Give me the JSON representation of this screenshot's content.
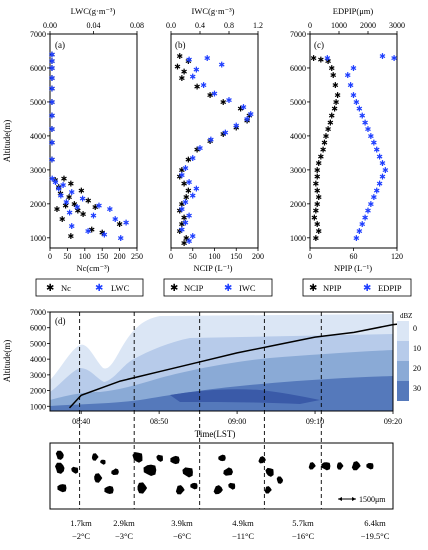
{
  "panels": {
    "a": {
      "tag": "(a)",
      "top_axis_label": "LWC(g·m⁻³)",
      "top_ticks": [
        "0.00",
        "0.04",
        "0.08"
      ],
      "bottom_axis_label": "Nc(cm⁻³)",
      "bottom_ticks": [
        "0",
        "50",
        "100",
        "150",
        "200",
        "250"
      ],
      "y_axis_label": "Altitude(m)",
      "y_ticks": [
        "1000",
        "2000",
        "3000",
        "4000",
        "5000",
        "6000",
        "7000"
      ],
      "legend": [
        "Nc",
        "LWC"
      ]
    },
    "b": {
      "tag": "(b)",
      "top_axis_label": "IWC(g·m⁻³)",
      "top_ticks": [
        "0.0",
        "0.4",
        "0.8",
        "1.2"
      ],
      "bottom_axis_label": "NCIP (L⁻¹)",
      "bottom_ticks": [
        "0",
        "50",
        "100",
        "150",
        "200"
      ],
      "legend": [
        "NCIP",
        "IWC"
      ]
    },
    "c": {
      "tag": "(c)",
      "top_axis_label": "EDPIP(μm)",
      "top_ticks": [
        "0",
        "1000",
        "2000",
        "3000"
      ],
      "bottom_axis_label": "NPIP (L⁻¹)",
      "bottom_ticks": [
        "0",
        "60",
        "120"
      ],
      "y_ticks": [
        "1000",
        "2000",
        "3000",
        "4000",
        "5000",
        "6000",
        "7000"
      ],
      "legend": [
        "NPIP",
        "EDPIP"
      ]
    },
    "d": {
      "tag": "(d)",
      "y_axis_label": "Altitude(m)",
      "y_ticks": [
        "1000",
        "2000",
        "3000",
        "4000",
        "5000",
        "6000",
        "7000"
      ],
      "x_axis_label": "Time(LST)",
      "x_ticks": [
        "08:40",
        "08:50",
        "09:00",
        "09:10",
        "09:20"
      ],
      "colorbar_title": "dBZ",
      "colorbar_ticks": [
        "0",
        "10",
        "20",
        "30"
      ]
    }
  },
  "particles": {
    "scale_label": "1500μm",
    "columns": [
      {
        "alt": "1.7km",
        "temp": "−2°C"
      },
      {
        "alt": "2.9km",
        "temp": "−3°C"
      },
      {
        "alt": "3.9km",
        "temp": "−6°C"
      },
      {
        "alt": "4.9km",
        "temp": "−11°C"
      },
      {
        "alt": "5.7km",
        "temp": "−16°C"
      },
      {
        "alt": "6.4km",
        "temp": "−19.5°C"
      }
    ]
  },
  "colors": {
    "black_series": "#000000",
    "blue_series": "#1f3fff",
    "dbz_levels": [
      "#dbe6f5",
      "#b7cbea",
      "#8aaad6",
      "#5579bb",
      "#3a5aa8"
    ]
  },
  "chart_data": [
    {
      "type": "scatter",
      "panel": "a",
      "ylim": [
        700,
        7000
      ],
      "series": [
        {
          "name": "Nc",
          "axis": "bottom",
          "xlim": [
            0,
            250
          ],
          "x": [
            0,
            0,
            0,
            0,
            0,
            0,
            0,
            0,
            0,
            0,
            40,
            15,
            60,
            25,
            90,
            30,
            55,
            110,
            70,
            45,
            130,
            20,
            80,
            95,
            35,
            200,
            120,
            150,
            60
          ],
          "y": [
            6400,
            6200,
            6000,
            5700,
            5400,
            5000,
            4600,
            4200,
            3800,
            3300,
            2750,
            2700,
            2600,
            2500,
            2400,
            2300,
            2200,
            2100,
            2000,
            1950,
            1900,
            1850,
            1800,
            1700,
            1550,
            1400,
            1250,
            1150,
            1050
          ]
        },
        {
          "name": "LWC",
          "axis": "top",
          "xlim": [
            0,
            0.08
          ],
          "x": [
            0.001,
            0.001,
            0.001,
            0.001,
            0.001,
            0.001,
            0.001,
            0.001,
            0.001,
            0.001,
            0.002,
            0.005,
            0.012,
            0.008,
            0.02,
            0.01,
            0.03,
            0.015,
            0.045,
            0.025,
            0.055,
            0.018,
            0.04,
            0.06,
            0.07,
            0.02,
            0.035,
            0.05,
            0.065
          ],
          "y": [
            6400,
            6200,
            6000,
            5700,
            5400,
            5000,
            4600,
            4200,
            3800,
            3300,
            2750,
            2650,
            2550,
            2450,
            2350,
            2250,
            2150,
            2050,
            1950,
            1900,
            1850,
            1750,
            1650,
            1550,
            1450,
            1350,
            1200,
            1100,
            1000
          ]
        }
      ]
    },
    {
      "type": "scatter",
      "panel": "b",
      "ylim": [
        700,
        7000
      ],
      "series": [
        {
          "name": "NCIP",
          "axis": "bottom",
          "xlim": [
            0,
            200
          ],
          "x": [
            20,
            40,
            15,
            30,
            25,
            60,
            90,
            120,
            160,
            180,
            175,
            150,
            120,
            90,
            60,
            40,
            25,
            20,
            30,
            40,
            35,
            25,
            20,
            30,
            25,
            20,
            35,
            30
          ],
          "y": [
            6350,
            6200,
            6050,
            5900,
            5700,
            5450,
            5200,
            5000,
            4800,
            4600,
            4450,
            4250,
            4050,
            3850,
            3600,
            3300,
            3000,
            2800,
            2600,
            2400,
            2200,
            2000,
            1800,
            1600,
            1400,
            1200,
            1000,
            850
          ]
        },
        {
          "name": "IWC",
          "axis": "top",
          "xlim": [
            0,
            1.2
          ],
          "x": [
            0.5,
            0.25,
            0.7,
            0.35,
            0.3,
            0.45,
            0.6,
            0.8,
            1.0,
            1.1,
            1.05,
            0.9,
            0.75,
            0.55,
            0.4,
            0.3,
            0.2,
            0.15,
            0.25,
            0.35,
            0.3,
            0.2,
            0.15,
            0.25,
            0.2,
            0.15,
            0.3,
            0.25
          ],
          "y": [
            6300,
            6250,
            6100,
            5950,
            5750,
            5500,
            5250,
            5050,
            4850,
            4650,
            4500,
            4300,
            4100,
            3900,
            3650,
            3350,
            3050,
            2850,
            2650,
            2450,
            2250,
            2050,
            1850,
            1650,
            1450,
            1250,
            1050,
            900
          ]
        }
      ]
    },
    {
      "type": "scatter",
      "panel": "c",
      "ylim": [
        700,
        7000
      ],
      "series": [
        {
          "name": "NPIP",
          "axis": "bottom",
          "xlim": [
            0,
            120
          ],
          "x": [
            5,
            15,
            25,
            30,
            32,
            35,
            38,
            36,
            34,
            30,
            28,
            25,
            22,
            20,
            18,
            15,
            12,
            10,
            10,
            8,
            10,
            12,
            10,
            8,
            6,
            10,
            12,
            8
          ],
          "y": [
            6300,
            6250,
            6200,
            6000,
            5800,
            5500,
            5200,
            5000,
            4800,
            4600,
            4400,
            4200,
            4000,
            3800,
            3600,
            3400,
            3200,
            3000,
            2800,
            2600,
            2400,
            2200,
            2000,
            1800,
            1600,
            1400,
            1200,
            1000
          ]
        },
        {
          "name": "EDPIP",
          "axis": "top",
          "xlim": [
            0,
            3000
          ],
          "x": [
            600,
            2500,
            2900,
            1500,
            1300,
            1400,
            1500,
            1600,
            1700,
            1800,
            1900,
            2000,
            2100,
            2200,
            2300,
            2400,
            2500,
            2600,
            2500,
            2400,
            2300,
            2200,
            2100,
            2000,
            1900,
            1800,
            1700,
            1600
          ],
          "y": [
            6300,
            6350,
            6300,
            6000,
            5800,
            5500,
            5200,
            5000,
            4800,
            4600,
            4400,
            4200,
            4000,
            3800,
            3600,
            3400,
            3200,
            3000,
            2800,
            2600,
            2400,
            2200,
            2000,
            1800,
            1600,
            1400,
            1200,
            1000
          ]
        }
      ]
    },
    {
      "type": "line",
      "panel": "d",
      "title": "",
      "ylim": [
        700,
        7000
      ],
      "x_minutes_from_0840": [
        -1.5,
        0,
        5,
        10,
        15,
        20,
        25,
        30,
        35,
        40,
        42
      ],
      "aircraft_altitude": [
        900,
        1700,
        2600,
        3200,
        3800,
        4400,
        4900,
        5400,
        5700,
        6200,
        6300
      ],
      "vertical_markers_minutes": [
        -0.2,
        6.8,
        15.2,
        23.5,
        30.8
      ]
    }
  ]
}
